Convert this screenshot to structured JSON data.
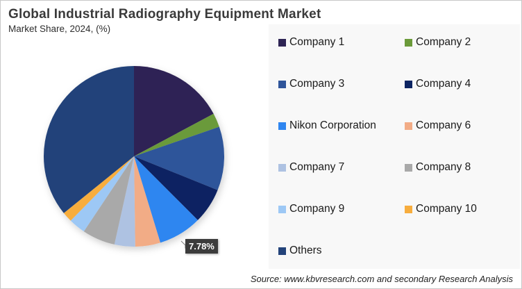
{
  "header": {
    "title": "Global Industrial Radiography Equipment Market",
    "subtitle": "Market Share, 2024, (%)"
  },
  "data_label": "7.78%",
  "source": "Source: www.kbvresearch.com and secondary Research Analysis",
  "legend": [
    {
      "label": "Company 1",
      "color": "#2e2454"
    },
    {
      "label": "Company 2",
      "color": "#6b9a3a"
    },
    {
      "label": "Company 3",
      "color": "#2f559a"
    },
    {
      "label": "Company 4",
      "color": "#0c2462"
    },
    {
      "label": "Nikon Corporation",
      "color": "#2f86f0"
    },
    {
      "label": "Company 6",
      "color": "#f2ac86"
    },
    {
      "label": "Company 7",
      "color": "#aec2e2"
    },
    {
      "label": "Company 8",
      "color": "#a9a9a9"
    },
    {
      "label": "Company 9",
      "color": "#9dc8f5"
    },
    {
      "label": "Company 10",
      "color": "#f7ad3e"
    },
    {
      "label": "Others",
      "color": "#23437a"
    }
  ],
  "chart_data": {
    "type": "pie",
    "title": "Global Industrial Radiography Equipment Market",
    "subtitle": "Market Share, 2024, (%)",
    "categories": [
      "Company 1",
      "Company 2",
      "Company 3",
      "Company 4",
      "Nikon Corporation",
      "Company 6",
      "Company 7",
      "Company 8",
      "Company 9",
      "Company 10",
      "Others"
    ],
    "values": [
      17.2,
      2.5,
      11.4,
      6.4,
      7.78,
      4.5,
      3.7,
      5.9,
      3.0,
      1.8,
      35.82
    ],
    "labeled_values": {
      "Nikon Corporation": "7.78%"
    },
    "start_angle_deg": 0,
    "direction": "clockwise",
    "legend_position": "right",
    "source": "Source: www.kbvresearch.com and secondary Research Analysis"
  }
}
